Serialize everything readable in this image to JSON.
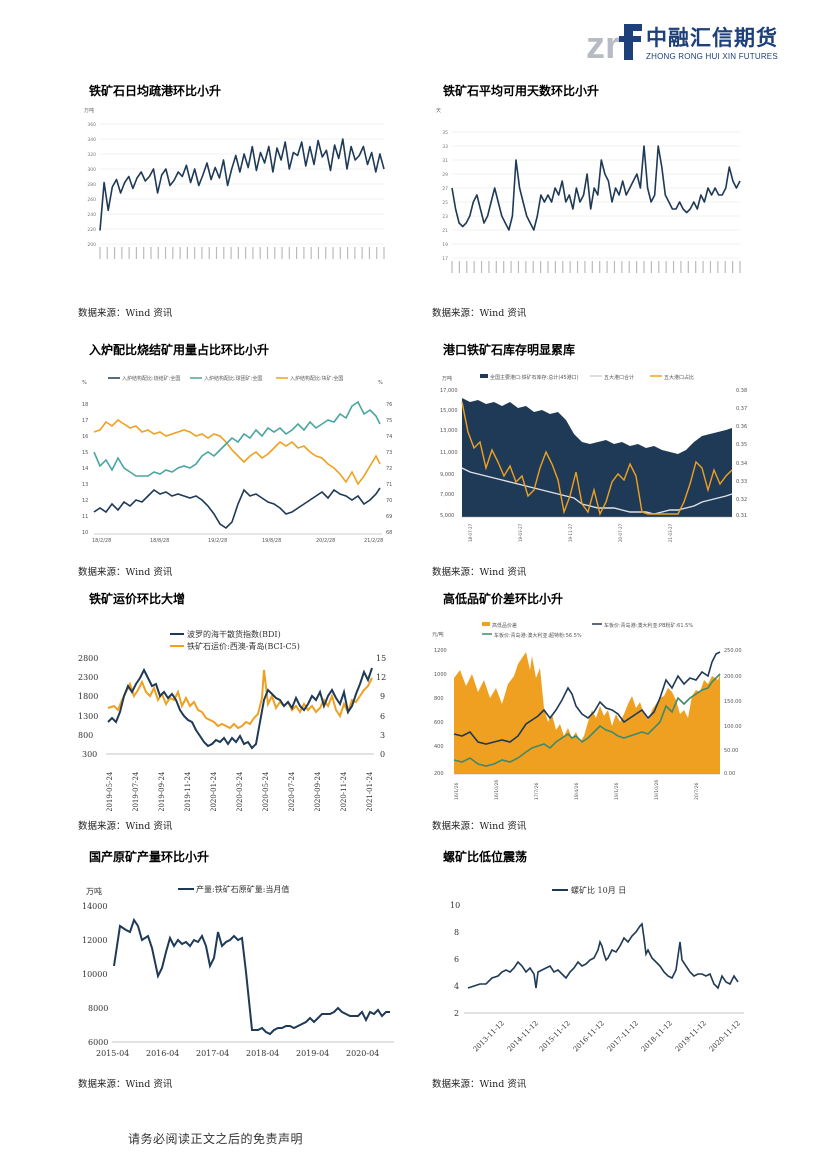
{
  "header": {
    "brand_cn": "中融汇信期货",
    "brand_en": "ZHONG RONG HUI XIN FUTURES",
    "colors": {
      "navy": "#1d3f7a",
      "gray": "#b7bcc4"
    }
  },
  "sections": [
    {
      "title": "铁矿石日均疏港环比小升",
      "source": "数据来源：Wind 资讯"
    },
    {
      "title": "铁矿石平均可用天数环比小升",
      "source": "数据来源：Wind 资讯"
    },
    {
      "title": "入炉配比烧结矿用量占比环比小升",
      "source": "数据来源：Wind 资讯"
    },
    {
      "title": "港口铁矿石库存明显累库",
      "source": "数据来源：Wind 资讯"
    },
    {
      "title": "铁矿运价环比大增",
      "source": "数据来源：Wind 资讯"
    },
    {
      "title": "高低品矿价差环比小升",
      "source": "数据来源：Wind 资讯"
    },
    {
      "title": "国产原矿产量环比小升",
      "source": "数据来源：Wind 资讯"
    },
    {
      "title": "螺矿比低位震荡",
      "source": "数据来源：Wind 资讯"
    }
  ],
  "footer": {
    "disclaimer": "请务必阅读正文之后的免责声明"
  },
  "chart_data": [
    {
      "type": "line",
      "unit_label": "万吨",
      "ylim": [
        200,
        360
      ],
      "yticks": [
        200,
        220,
        240,
        260,
        280,
        300,
        320,
        340,
        360
      ],
      "series": [
        {
          "color": "#1f3a56",
          "values": [
            218,
            282,
            245,
            276,
            286,
            268,
            282,
            290,
            274,
            288,
            296,
            284,
            290,
            300,
            268,
            292,
            300,
            278,
            285,
            296,
            290,
            305,
            282,
            300,
            278,
            292,
            308,
            286,
            302,
            288,
            312,
            278,
            300,
            318,
            296,
            320,
            302,
            330,
            298,
            322,
            308,
            330,
            296,
            328,
            312,
            336,
            300,
            322,
            318,
            336,
            304,
            330,
            306,
            338,
            316,
            325,
            298,
            332,
            314,
            340,
            300,
            330,
            312,
            318,
            330,
            306,
            322,
            296,
            320,
            300
          ]
        }
      ]
    },
    {
      "type": "line",
      "unit_label": "天",
      "ylim": [
        17,
        35
      ],
      "yticks": [
        17,
        19,
        21,
        23,
        25,
        27,
        29,
        31,
        33,
        35
      ],
      "series": [
        {
          "color": "#1f3a56",
          "values": [
            27,
            24,
            22,
            21.5,
            22,
            23,
            25,
            26,
            24,
            22,
            23,
            25,
            27,
            25,
            23,
            22,
            21,
            23,
            31,
            27,
            25,
            23,
            22,
            21,
            23,
            26,
            25,
            26,
            25,
            27,
            26,
            28,
            25,
            26,
            24,
            27,
            25,
            26,
            29,
            24,
            27,
            26,
            31,
            29,
            28,
            25,
            27,
            26,
            28,
            26,
            27,
            28,
            29,
            27,
            33,
            27,
            25,
            26,
            33,
            30,
            26,
            25,
            24,
            24,
            25,
            24,
            23.5,
            24,
            25,
            24,
            26,
            25,
            27,
            26,
            27,
            26,
            26,
            27,
            30,
            28,
            27,
            28
          ]
        }
      ]
    }
  ]
}
